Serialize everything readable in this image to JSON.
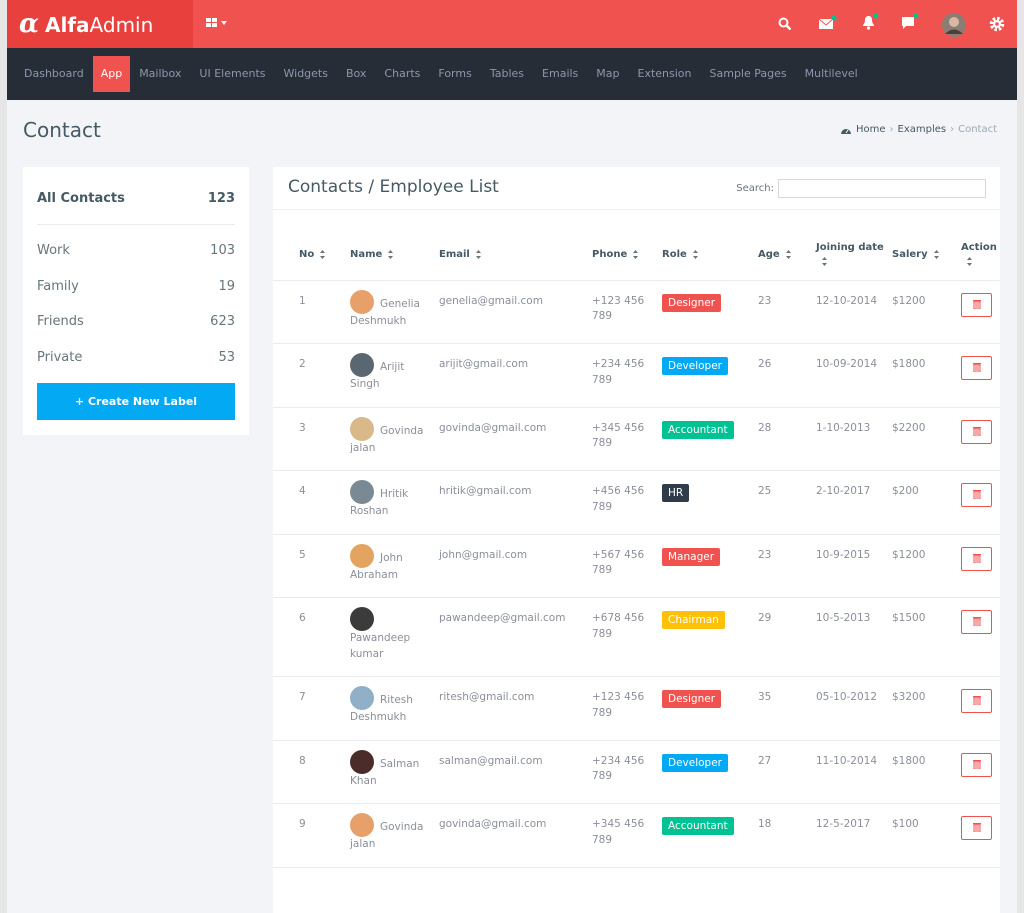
{
  "brand": {
    "alfa": "Alfa",
    "admin": "Admin"
  },
  "nav": [
    "Dashboard",
    "App",
    "Mailbox",
    "UI Elements",
    "Widgets",
    "Box",
    "Charts",
    "Forms",
    "Tables",
    "Emails",
    "Map",
    "Extension",
    "Sample Pages",
    "Multilevel"
  ],
  "page_title": "Contact",
  "breadcrumb": [
    "Home",
    "Examples",
    "Contact"
  ],
  "sidebar": {
    "all": {
      "label": "All Contacts",
      "count": 123
    },
    "labels": [
      {
        "label": "Work",
        "count": 103
      },
      {
        "label": "Family",
        "count": 19
      },
      {
        "label": "Friends",
        "count": 623
      },
      {
        "label": "Private",
        "count": 53
      }
    ],
    "button": "+ Create New Label"
  },
  "table": {
    "title": "Contacts / Employee List",
    "search_label": "Search:",
    "columns": [
      "No",
      "Name",
      "Email",
      "Phone",
      "Role",
      "Age",
      "Joining date",
      "Salery",
      "Action"
    ],
    "rows": [
      {
        "no": 1,
        "name": "Genelia Deshmukh",
        "email": "genelia@gmail.com",
        "phone": "+123 456 789",
        "role": {
          "label": "Designer",
          "color": "#f0534f"
        },
        "age": 23,
        "date": "12-10-2014",
        "salary": "$1200"
      },
      {
        "no": 2,
        "name": "Arijit Singh",
        "email": "arijit@gmail.com",
        "phone": "+234 456 789",
        "role": {
          "label": "Developer",
          "color": "#03a9f3"
        },
        "age": 26,
        "date": "10-09-2014",
        "salary": "$1800"
      },
      {
        "no": 3,
        "name": "Govinda jalan",
        "email": "govinda@gmail.com",
        "phone": "+345 456 789",
        "role": {
          "label": "Accountant",
          "color": "#00c292"
        },
        "age": 28,
        "date": "1-10-2013",
        "salary": "$2200"
      },
      {
        "no": 4,
        "name": "Hritik Roshan",
        "email": "hritik@gmail.com",
        "phone": "+456 456 789",
        "role": {
          "label": "HR",
          "color": "#2f3d4a"
        },
        "age": 25,
        "date": "2-10-2017",
        "salary": "$200"
      },
      {
        "no": 5,
        "name": "John Abraham",
        "email": "john@gmail.com",
        "phone": "+567 456 789",
        "role": {
          "label": "Manager",
          "color": "#f0534f"
        },
        "age": 23,
        "date": "10-9-2015",
        "salary": "$1200"
      },
      {
        "no": 6,
        "name": "Pawandeep kumar",
        "email": "pawandeep@gmail.com",
        "phone": "+678 456 789",
        "role": {
          "label": "Chairman",
          "color": "#fec107"
        },
        "age": 29,
        "date": "10-5-2013",
        "salary": "$1500"
      },
      {
        "no": 7,
        "name": "Ritesh Deshmukh",
        "email": "ritesh@gmail.com",
        "phone": "+123 456 789",
        "role": {
          "label": "Designer",
          "color": "#f0534f"
        },
        "age": 35,
        "date": "05-10-2012",
        "salary": "$3200"
      },
      {
        "no": 8,
        "name": "Salman Khan",
        "email": "salman@gmail.com",
        "phone": "+234 456 789",
        "role": {
          "label": "Developer",
          "color": "#03a9f3"
        },
        "age": 27,
        "date": "11-10-2014",
        "salary": "$1800"
      },
      {
        "no": 9,
        "name": "Govinda jalan",
        "email": "govinda@gmail.com",
        "phone": "+345 456 789",
        "role": {
          "label": "Accountant",
          "color": "#00c292"
        },
        "age": 18,
        "date": "12-5-2017",
        "salary": "$100"
      }
    ]
  }
}
